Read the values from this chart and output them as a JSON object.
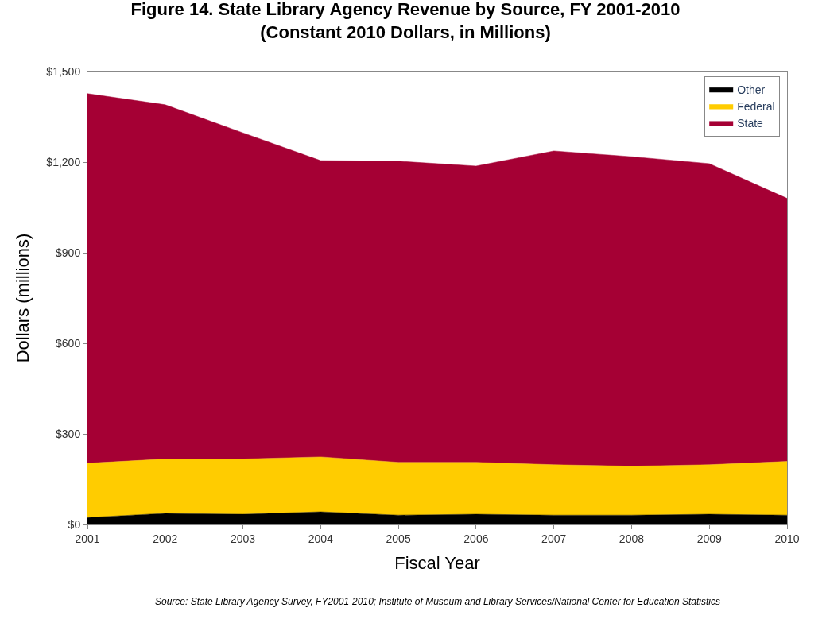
{
  "chart_data": {
    "type": "area",
    "stacked": true,
    "title": "Figure 14. State Library Agency Revenue by Source, FY 2001-2010",
    "subtitle": "(Constant 2010 Dollars, in Millions)",
    "xlabel": "Fiscal Year",
    "ylabel": "Dollars (millions)",
    "x": [
      2001,
      2002,
      2003,
      2004,
      2005,
      2006,
      2007,
      2008,
      2009,
      2010
    ],
    "series": [
      {
        "name": "Other",
        "color": "#000000",
        "values": [
          23,
          37,
          34,
          42,
          31,
          34,
          31,
          31,
          34,
          31
        ]
      },
      {
        "name": "Federal",
        "color": "#ffcc00",
        "values": [
          180,
          180,
          183,
          182,
          175,
          172,
          167,
          162,
          164,
          178
        ]
      },
      {
        "name": "State",
        "color": "#a50034",
        "values": [
          1224,
          1173,
          1080,
          981,
          997,
          981,
          1039,
          1025,
          997,
          871
        ]
      }
    ],
    "xlim": [
      2001,
      2010
    ],
    "xticks": [
      2001,
      2002,
      2003,
      2004,
      2005,
      2006,
      2007,
      2008,
      2009,
      2010
    ],
    "ylim": [
      0,
      1500
    ],
    "yticks": [
      {
        "value": 0,
        "label": "$0"
      },
      {
        "value": 300,
        "label": "$300"
      },
      {
        "value": 600,
        "label": "$600"
      },
      {
        "value": 900,
        "label": "$900"
      },
      {
        "value": 1200,
        "label": "$1,200"
      },
      {
        "value": 1500,
        "label": "$1,500"
      }
    ],
    "legend": "top right",
    "annotations": [
      "Source: State Library Agency Survey, FY2001-2010; Institute of Museum and Library Services/National Center for Education Statistics"
    ]
  }
}
